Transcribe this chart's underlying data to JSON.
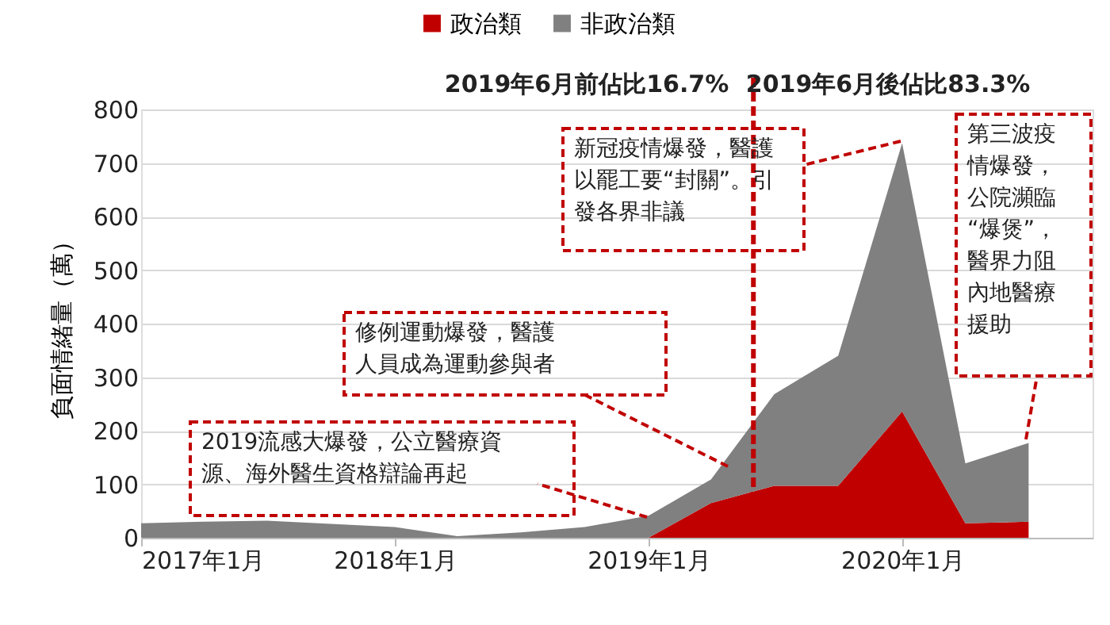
{
  "chart_data": {
    "type": "area",
    "stacked": true,
    "x": [
      "2017-01",
      "2017-04",
      "2017-07",
      "2017-10",
      "2018-01",
      "2018-04",
      "2018-07",
      "2018-10",
      "2019-01",
      "2019-04",
      "2019-07",
      "2019-10",
      "2020-01",
      "2020-04",
      "2020-07"
    ],
    "series": [
      {
        "name": "政治類",
        "color": "#c00000",
        "values": [
          0,
          0,
          0,
          0,
          0,
          0,
          0,
          0,
          0,
          65,
          97,
          97,
          236,
          27,
          30
        ]
      },
      {
        "name": "非政治類",
        "color": "#808080",
        "values": [
          27,
          30,
          32,
          26,
          20,
          3,
          10,
          20,
          41,
          44,
          171,
          243,
          501,
          112,
          147
        ]
      }
    ],
    "ylabel": "負面情緒量（萬）",
    "xlim": [
      "2017-01",
      "2020-10"
    ],
    "xticks": [
      {
        "value": "2017-01",
        "label": "2017年1月"
      },
      {
        "value": "2018-01",
        "label": "2018年1月"
      },
      {
        "value": "2019-01",
        "label": "2019年1月"
      },
      {
        "value": "2020-01",
        "label": "2020年1月"
      }
    ],
    "ylim": [
      0,
      800
    ],
    "yticks": [
      0,
      100,
      200,
      300,
      400,
      500,
      600,
      700,
      800
    ],
    "grid": "y",
    "legend": "top",
    "ref_lines": [
      {
        "axis": "x",
        "value": "2019-06",
        "color": "#c00000",
        "line_style": "dashed"
      }
    ],
    "annotations": [
      "2019年6月前佔比16.7%",
      "2019年6月後佔比83.3%",
      "2019流感大爆發，公立醫療資源、海外醫生資格辯論再起",
      "修例運動爆發，醫護人員成為運動參與者",
      "新冠疫情爆發，醫護以罷工要“封關”。引發各界非議",
      "第三波疫情爆發，公院瀕臨“爆煲”，醫界力阻內地醫療援助"
    ]
  }
}
